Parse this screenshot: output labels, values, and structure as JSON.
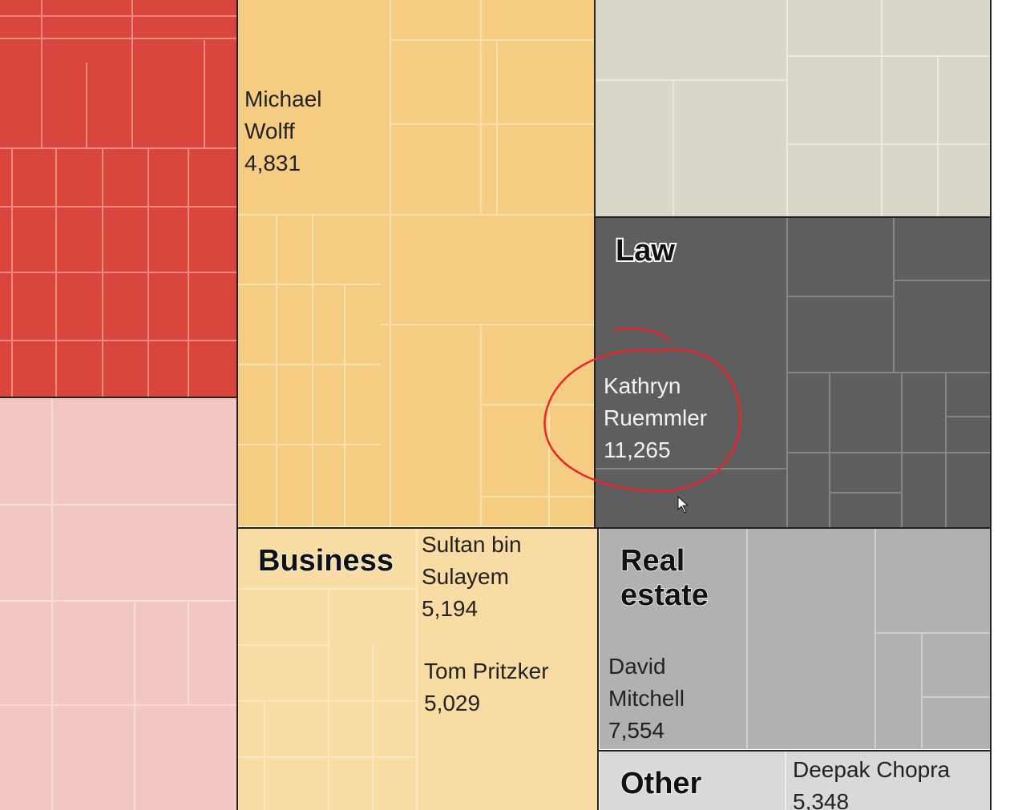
{
  "groups": {
    "law": "Law",
    "business": "Business",
    "real_estate": [
      "Real",
      "estate"
    ],
    "other": "Other"
  },
  "people": [
    {
      "name": [
        "Michael",
        "Wolff"
      ],
      "count": "4,831"
    },
    {
      "name": [
        "Kathryn",
        "Ruemmler"
      ],
      "count": "11,265"
    },
    {
      "name": [
        "Sultan bin",
        "Sulayem"
      ],
      "count": "5,194"
    },
    {
      "name": [
        "Tom Pritzker"
      ],
      "count": "5,029"
    },
    {
      "name": [
        "David",
        "Mitchell"
      ],
      "count": "7,554"
    },
    {
      "name": [
        "Deepak Chopra"
      ],
      "count": "5,348"
    }
  ]
}
